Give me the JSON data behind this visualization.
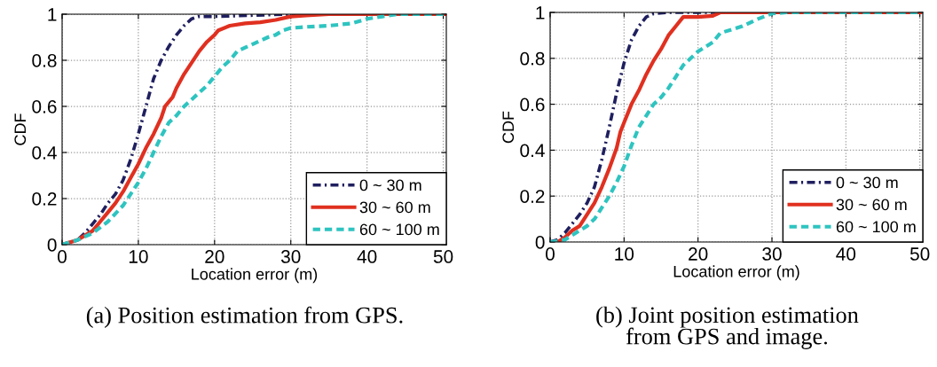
{
  "chart_data": [
    {
      "type": "line",
      "title": "(a) Position estimation from GPS.",
      "xlabel": "Location error (m)",
      "ylabel": "CDF",
      "xlim": [
        0,
        50.4
      ],
      "ylim": [
        0,
        1
      ],
      "xticks": [
        0,
        10,
        20,
        30,
        40,
        50
      ],
      "yticks": [
        0,
        0.2,
        0.4,
        0.6,
        0.8,
        1
      ],
      "grid": true,
      "legend": "bottom right",
      "series": [
        {
          "name": "0 ~ 30 m",
          "color": "#1f1f5f",
          "line_style": "dashdot",
          "x": [
            0,
            2,
            3,
            4,
            5,
            6,
            7,
            8,
            9,
            10,
            11,
            12,
            13,
            14,
            15,
            16,
            17,
            18,
            20,
            25,
            30,
            50.4
          ],
          "values": [
            0,
            0.02,
            0.05,
            0.09,
            0.13,
            0.18,
            0.22,
            0.28,
            0.37,
            0.48,
            0.6,
            0.72,
            0.8,
            0.86,
            0.91,
            0.95,
            0.98,
            0.99,
            0.99,
            0.995,
            1,
            1
          ]
        },
        {
          "name": "30 ~ 60 m",
          "color": "#e03020",
          "line_style": "solid",
          "x": [
            0,
            2,
            3,
            4,
            5,
            6,
            7,
            8,
            9,
            10,
            11,
            12,
            13,
            13.5,
            14.5,
            15,
            16,
            17,
            18,
            19,
            20,
            20.5,
            22,
            24,
            26,
            28,
            30,
            32,
            35,
            50.4
          ],
          "values": [
            0,
            0.02,
            0.04,
            0.06,
            0.1,
            0.14,
            0.18,
            0.23,
            0.29,
            0.35,
            0.42,
            0.48,
            0.55,
            0.6,
            0.64,
            0.68,
            0.74,
            0.79,
            0.84,
            0.88,
            0.91,
            0.93,
            0.95,
            0.96,
            0.965,
            0.975,
            0.99,
            0.995,
            1,
            1
          ]
        },
        {
          "name": "60 ~ 100 m",
          "color": "#2ec4c0",
          "line_style": "dashed",
          "x": [
            0,
            2,
            4,
            6,
            8,
            9,
            10,
            11,
            12,
            13,
            14,
            15,
            16,
            17,
            18,
            19,
            20,
            21,
            22,
            23,
            25,
            27,
            28,
            29,
            30,
            32,
            35,
            38,
            40,
            42,
            44,
            50.4
          ],
          "values": [
            0,
            0.02,
            0.05,
            0.1,
            0.17,
            0.22,
            0.27,
            0.33,
            0.4,
            0.47,
            0.53,
            0.56,
            0.6,
            0.63,
            0.66,
            0.69,
            0.73,
            0.77,
            0.8,
            0.84,
            0.87,
            0.9,
            0.91,
            0.93,
            0.94,
            0.945,
            0.95,
            0.96,
            0.98,
            0.99,
            1,
            1
          ]
        }
      ]
    },
    {
      "type": "line",
      "title": "(b) Joint position estimation\nfrom GPS and image.",
      "xlabel": "Location error (m)",
      "ylabel": "CDF",
      "xlim": [
        0,
        50.4
      ],
      "ylim": [
        0,
        1
      ],
      "xticks": [
        0,
        10,
        20,
        30,
        40,
        50
      ],
      "yticks": [
        0,
        0.2,
        0.4,
        0.6,
        0.8,
        1
      ],
      "grid": true,
      "legend": "bottom right",
      "series": [
        {
          "name": "0 ~ 30 m",
          "color": "#1f1f5f",
          "line_style": "dashdot",
          "x": [
            0,
            1,
            2,
            3,
            4,
            5,
            6,
            7,
            8,
            9,
            10,
            11,
            12,
            13,
            14,
            16,
            50.4
          ],
          "values": [
            0,
            0.01,
            0.04,
            0.08,
            0.12,
            0.17,
            0.24,
            0.36,
            0.5,
            0.65,
            0.78,
            0.88,
            0.94,
            0.98,
            0.995,
            1,
            1
          ]
        },
        {
          "name": "30 ~ 60 m",
          "color": "#e03020",
          "line_style": "solid",
          "x": [
            0,
            1,
            2,
            3,
            4,
            5,
            6,
            7,
            8,
            9,
            9.5,
            10,
            11,
            12,
            13,
            14,
            15,
            16,
            17,
            18,
            20,
            22,
            23,
            50.4
          ],
          "values": [
            0,
            0,
            0.02,
            0.05,
            0.07,
            0.12,
            0.17,
            0.24,
            0.32,
            0.41,
            0.48,
            0.52,
            0.6,
            0.66,
            0.73,
            0.79,
            0.84,
            0.9,
            0.94,
            0.98,
            0.98,
            0.985,
            1,
            1
          ]
        },
        {
          "name": "60 ~ 100 m",
          "color": "#2ec4c0",
          "line_style": "dashed",
          "x": [
            0,
            2,
            3,
            4,
            5,
            6,
            7,
            8,
            9,
            10,
            11,
            12,
            13,
            14,
            15,
            16,
            17,
            18,
            19,
            20,
            22,
            23,
            25,
            26,
            28,
            30,
            32,
            50.4
          ],
          "values": [
            0,
            0.01,
            0.03,
            0.05,
            0.07,
            0.1,
            0.15,
            0.2,
            0.26,
            0.33,
            0.42,
            0.5,
            0.55,
            0.6,
            0.63,
            0.67,
            0.72,
            0.77,
            0.8,
            0.83,
            0.87,
            0.91,
            0.93,
            0.94,
            0.97,
            0.995,
            1,
            1
          ]
        }
      ]
    }
  ]
}
